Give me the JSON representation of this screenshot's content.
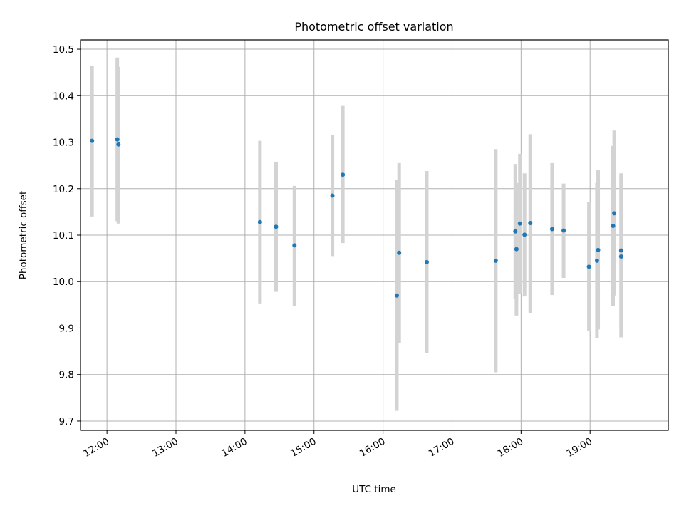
{
  "chart_data": {
    "type": "scatter",
    "title": "Photometric offset variation",
    "xlabel": "UTC time",
    "ylabel": "Photometric offset",
    "xlim": [
      "11:37",
      "20:08"
    ],
    "ylim": [
      9.68,
      10.52
    ],
    "x_ticks": [
      "12:00",
      "13:00",
      "14:00",
      "15:00",
      "16:00",
      "17:00",
      "18:00",
      "19:00"
    ],
    "y_ticks": [
      9.7,
      9.8,
      9.9,
      10.0,
      10.1,
      10.2,
      10.3,
      10.4,
      10.5
    ],
    "y_tick_labels": [
      "9.7",
      "9.8",
      "9.9",
      "10.0",
      "10.1",
      "10.2",
      "10.3",
      "10.4",
      "10.5"
    ],
    "grid": true,
    "series": [
      {
        "marker_color": "#1f77b4",
        "errorbar_color": "#d3d3d3",
        "points": [
          {
            "x": "11:47",
            "y": 10.303,
            "ylo": 10.14,
            "yhi": 10.465
          },
          {
            "x": "12:09",
            "y": 10.306,
            "ylo": 10.13,
            "yhi": 10.482
          },
          {
            "x": "12:10",
            "y": 10.295,
            "ylo": 10.125,
            "yhi": 10.462
          },
          {
            "x": "14:13",
            "y": 10.128,
            "ylo": 9.953,
            "yhi": 10.303
          },
          {
            "x": "14:27",
            "y": 10.118,
            "ylo": 9.978,
            "yhi": 10.258
          },
          {
            "x": "14:43",
            "y": 10.078,
            "ylo": 9.948,
            "yhi": 10.206
          },
          {
            "x": "15:16",
            "y": 10.185,
            "ylo": 10.055,
            "yhi": 10.315
          },
          {
            "x": "15:25",
            "y": 10.23,
            "ylo": 10.083,
            "yhi": 10.378
          },
          {
            "x": "16:12",
            "y": 9.97,
            "ylo": 9.722,
            "yhi": 10.218
          },
          {
            "x": "16:14",
            "y": 10.062,
            "ylo": 9.868,
            "yhi": 10.255
          },
          {
            "x": "16:38",
            "y": 10.042,
            "ylo": 9.847,
            "yhi": 10.238
          },
          {
            "x": "17:38",
            "y": 10.045,
            "ylo": 9.805,
            "yhi": 10.285
          },
          {
            "x": "17:55",
            "y": 10.108,
            "ylo": 9.962,
            "yhi": 10.253
          },
          {
            "x": "17:56",
            "y": 10.07,
            "ylo": 9.927,
            "yhi": 10.212
          },
          {
            "x": "17:59",
            "y": 10.125,
            "ylo": 9.973,
            "yhi": 10.275
          },
          {
            "x": "18:03",
            "y": 10.101,
            "ylo": 9.968,
            "yhi": 10.233
          },
          {
            "x": "18:08",
            "y": 10.126,
            "ylo": 9.933,
            "yhi": 10.317
          },
          {
            "x": "18:27",
            "y": 10.113,
            "ylo": 9.971,
            "yhi": 10.255
          },
          {
            "x": "18:37",
            "y": 10.11,
            "ylo": 10.008,
            "yhi": 10.211
          },
          {
            "x": "18:59",
            "y": 10.032,
            "ylo": 9.893,
            "yhi": 10.171
          },
          {
            "x": "19:06",
            "y": 10.045,
            "ylo": 9.878,
            "yhi": 10.212
          },
          {
            "x": "19:07",
            "y": 10.068,
            "ylo": 9.897,
            "yhi": 10.24
          },
          {
            "x": "19:20",
            "y": 10.12,
            "ylo": 9.948,
            "yhi": 10.292
          },
          {
            "x": "19:21",
            "y": 10.147,
            "ylo": 9.97,
            "yhi": 10.325
          },
          {
            "x": "19:27",
            "y": 10.067,
            "ylo": 9.9,
            "yhi": 10.233
          },
          {
            "x": "19:27",
            "y": 10.054,
            "ylo": 9.88,
            "yhi": 10.228
          }
        ]
      }
    ]
  }
}
